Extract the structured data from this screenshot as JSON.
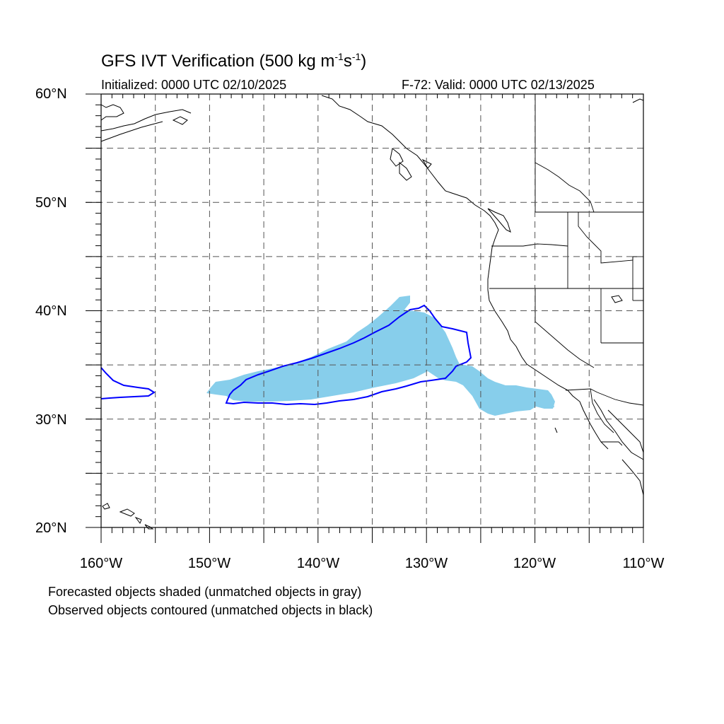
{
  "title": {
    "main": "GFS IVT Verification (500 kg m",
    "exp1": "-1",
    "mid": "s",
    "exp2": "-1",
    "end": ")"
  },
  "initialized": "Initialized: 0000 UTC 02/10/2025",
  "valid": "F-72: Valid: 0000 UTC 02/13/2025",
  "lat_labels": [
    "60°N",
    "50°N",
    "40°N",
    "30°N",
    "20°N"
  ],
  "lon_labels": [
    "160°W",
    "150°W",
    "140°W",
    "130°W",
    "120°W",
    "110°W"
  ],
  "captions": {
    "line1": "Forecasted objects shaded (unmatched objects in gray)",
    "line2": "Observed objects contoured (unmatched objects in black)"
  },
  "map": {
    "lon_range": [
      -160,
      -110
    ],
    "lat_range": [
      20,
      60
    ],
    "grid_lons": [
      -155,
      -150,
      -145,
      -140,
      -135,
      -130,
      -125,
      -120,
      -115
    ],
    "grid_lats": [
      25,
      30,
      35,
      40,
      45,
      50,
      55
    ],
    "colors": {
      "forecast_fill": "#87ceeb",
      "observed_contour": "#0000ff",
      "coastline": "#000000",
      "grid": "#555555"
    }
  }
}
